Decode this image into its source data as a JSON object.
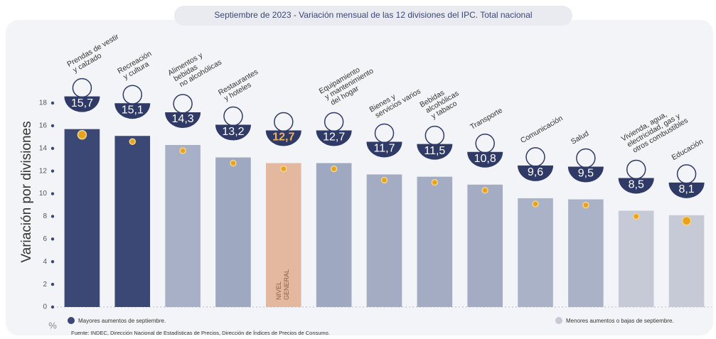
{
  "chart_data": {
    "type": "bar",
    "title": "Septiembre de 2023 - Variación mensual de las 12 divisiones del IPC. Total nacional",
    "y_label": "Variación por divisiones",
    "unit": "%",
    "categories": [
      [
        "Prendas de vestir",
        "y calzado"
      ],
      [
        "Recreación",
        "y cultura"
      ],
      [
        "Alimentos y",
        "bebidas",
        "no alcohólicas"
      ],
      [
        "Restaurantes",
        "y hoteles"
      ],
      null,
      [
        "Equipamiento",
        "y mantenimiento",
        "del hogar"
      ],
      [
        "Bienes y",
        "servicios varios"
      ],
      [
        "Bebidas",
        "alcohólicas",
        "y tabaco"
      ],
      [
        "Transporte"
      ],
      [
        "Comunicación"
      ],
      [
        "Salud"
      ],
      [
        "Vivienda, agua,",
        "electricidad, gas y",
        "otros combustibles"
      ],
      [
        "Educación"
      ]
    ],
    "values": [
      15.7,
      15.1,
      14.3,
      13.2,
      12.7,
      12.7,
      11.7,
      11.5,
      10.8,
      9.6,
      9.5,
      8.5,
      8.1
    ],
    "value_labels": [
      "15,7",
      "15,1",
      "14,3",
      "13,2",
      "12,7",
      "12,7",
      "11,7",
      "11,5",
      "10,8",
      "9,6",
      "9,5",
      "8,5",
      "8,1"
    ],
    "colors": [
      "#3b4775",
      "#3b4775",
      "#a7b0c6",
      "#9ea8c0",
      "#e4b89f",
      "#9ea8c0",
      "#a3acc3",
      "#a3acc3",
      "#a3acc3",
      "#a9b2c7",
      "#a9b2c7",
      "#c5cad6",
      "#c5cad6"
    ],
    "highlight_label": [
      "NIVEL",
      "GENERAL"
    ],
    "ylim": [
      0,
      18
    ],
    "yticks": [
      0,
      2,
      4,
      6,
      8,
      10,
      12,
      14,
      16,
      18
    ],
    "legend": [
      {
        "name": "Mayores aumentos de septiembre.",
        "color": "#3b4775"
      },
      {
        "name": "Menores aumentos o bajas de septiembre.",
        "color": "#c5cad6"
      }
    ],
    "source": "Fuente: INDEC, Dirección Nacional de Estadísticas de Precios, Dirección de Índices de Precios de Consumo."
  }
}
